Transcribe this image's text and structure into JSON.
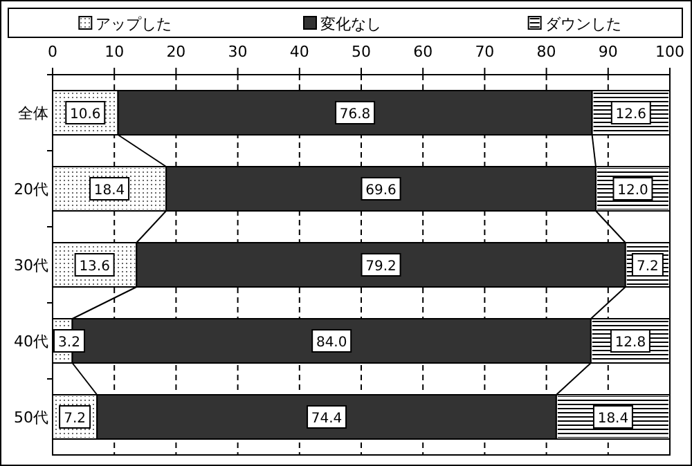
{
  "chart_data": {
    "type": "bar",
    "orientation": "horizontal",
    "stacked": true,
    "categories": [
      "全体",
      "20代",
      "30代",
      "40代",
      "50代"
    ],
    "series": [
      {
        "name": "アップした",
        "color": "#ffffff",
        "values": [
          10.6,
          18.4,
          13.6,
          3.2,
          7.2
        ],
        "value_labels": [
          "10.6",
          "18.4",
          "13.6",
          "3.2",
          "7.2"
        ]
      },
      {
        "name": "変化なし",
        "color": "#333333",
        "values": [
          76.8,
          69.6,
          79.2,
          84.0,
          74.4
        ],
        "value_labels": [
          "76.8",
          "69.6",
          "79.2",
          "84.0",
          "74.4"
        ]
      },
      {
        "name": "ダウンした",
        "color": "#ffffff",
        "values": [
          12.6,
          12.0,
          7.2,
          12.8,
          18.4
        ],
        "value_labels": [
          "12.6",
          "12.0",
          "7.2",
          "12.8",
          "18.4"
        ]
      }
    ],
    "xlim": [
      0,
      100
    ],
    "xticks": [
      0,
      10,
      20,
      30,
      40,
      50,
      60,
      70,
      80,
      90,
      100
    ],
    "grid": "x",
    "legend": "top"
  }
}
